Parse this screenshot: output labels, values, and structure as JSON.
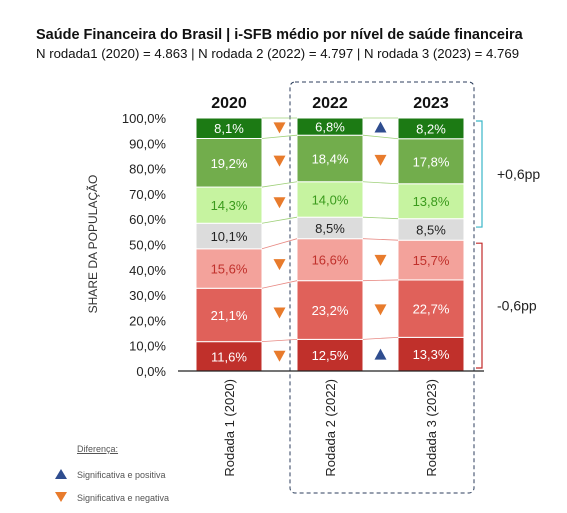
{
  "header": {
    "title": "Saúde Financeira do Brasil | i-SFB médio por nível de saúde financeira",
    "subtitle": "N rodada1 (2020) = 4.863 | N rodada 2 (2022) = 4.797 | N rodada 3 (2023) = 4.769"
  },
  "legend": {
    "title": "Diferença:",
    "up_label": "Significativa e positiva",
    "down_label": "Significativa e negativa"
  },
  "colors": {
    "positive_marker": "#2f4d8f",
    "negative_marker": "#e87b2c",
    "bracket_up": "#3ab6c8",
    "bracket_down": "#c22a2a"
  },
  "chart_data": {
    "type": "bar",
    "stacked": true,
    "ylabel": "SHARE DA POPULAÇÃO",
    "ylim": [
      0,
      100
    ],
    "yticks": [
      "0,0%",
      "10,0%",
      "20,0%",
      "30,0%",
      "40,0%",
      "50,0%",
      "60,0%",
      "70,0%",
      "80,0%",
      "90,0%",
      "100,0%"
    ],
    "categories": [
      "Rodada 1 (2020)",
      "Rodada 2 (2022)",
      "Rodada 3 (2023)"
    ],
    "year_labels": [
      "2020",
      "2022",
      "2023"
    ],
    "series": [
      {
        "color": "#c0302b",
        "values": [
          11.6,
          12.5,
          13.3
        ],
        "labels": [
          "11,6%",
          "12,5%",
          "13,3%"
        ],
        "text_color": "#ffffff"
      },
      {
        "color": "#e0615a",
        "values": [
          21.1,
          23.2,
          22.7
        ],
        "labels": [
          "21,1%",
          "23,2%",
          "22,7%"
        ],
        "text_color": "#ffffff"
      },
      {
        "color": "#f3a29b",
        "values": [
          15.6,
          16.6,
          15.7
        ],
        "labels": [
          "15,6%",
          "16,6%",
          "15,7%"
        ],
        "text_color": "#c0302b"
      },
      {
        "color": "#dcdcdc",
        "values": [
          10.1,
          8.5,
          8.5
        ],
        "labels": [
          "10,1%",
          "8,5%",
          "8,5%"
        ],
        "text_color": "#222222"
      },
      {
        "color": "#c6f3a0",
        "values": [
          14.3,
          14.0,
          13.8
        ],
        "labels": [
          "14,3%",
          "14,0%",
          "13,8%"
        ],
        "text_color": "#3a9a1c"
      },
      {
        "color": "#72ad4c",
        "values": [
          19.2,
          18.4,
          17.8
        ],
        "labels": [
          "19,2%",
          "18,4%",
          "17,8%"
        ],
        "text_color": "#ffffff"
      },
      {
        "color": "#1c7a14",
        "values": [
          8.1,
          6.8,
          8.2
        ],
        "labels": [
          "8,1%",
          "6,8%",
          "8,2%"
        ],
        "text_color": "#ffffff"
      }
    ],
    "markers_between_1_2": [
      "down",
      "down",
      "down",
      "none",
      "down",
      "down",
      "down"
    ],
    "markers_between_2_3": [
      "up",
      "down",
      "down",
      "none",
      "none",
      "down",
      "up"
    ],
    "brackets": [
      {
        "label": "+0,6pp",
        "from": 55.7,
        "to": 100
      },
      {
        "label": "-0,6pp",
        "from": 0,
        "to": 51.7
      }
    ]
  }
}
